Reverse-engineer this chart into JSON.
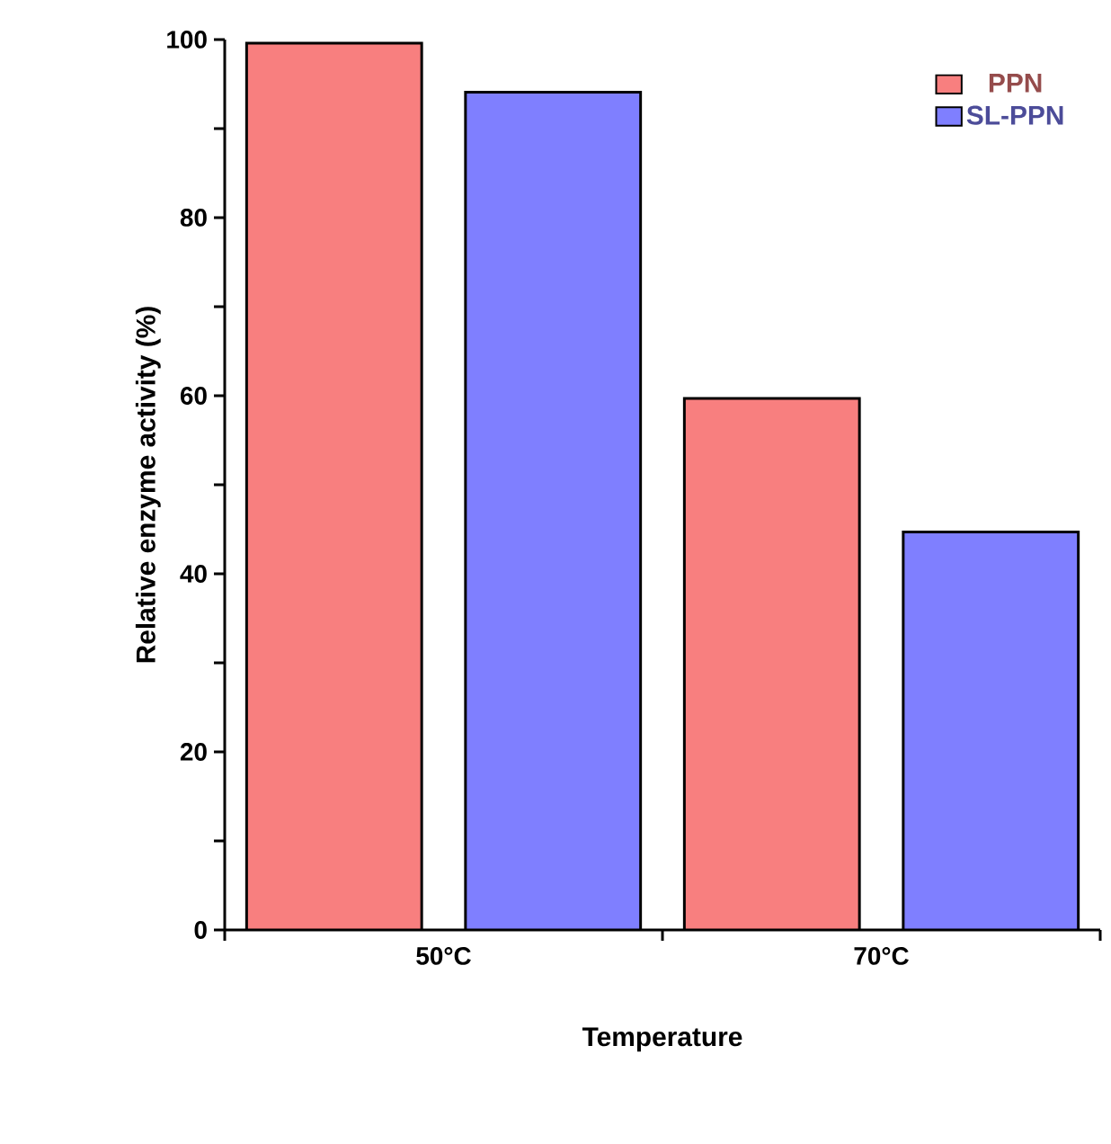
{
  "chart_data": {
    "type": "bar",
    "xlabel": "Temperature",
    "ylabel": "Relative enzyme activity (%)",
    "categories": [
      "50°C",
      "70°C"
    ],
    "series": [
      {
        "name": "PPN",
        "color": "#f87f7f",
        "values": [
          99.6,
          59.7
        ]
      },
      {
        "name": "SL-PPN",
        "color": "#7f7fff",
        "values": [
          94.1,
          44.7
        ]
      }
    ],
    "ylim": [
      0,
      100
    ],
    "yticks": [
      0,
      20,
      40,
      60,
      80,
      100
    ],
    "grid": false,
    "legend": "top right"
  }
}
